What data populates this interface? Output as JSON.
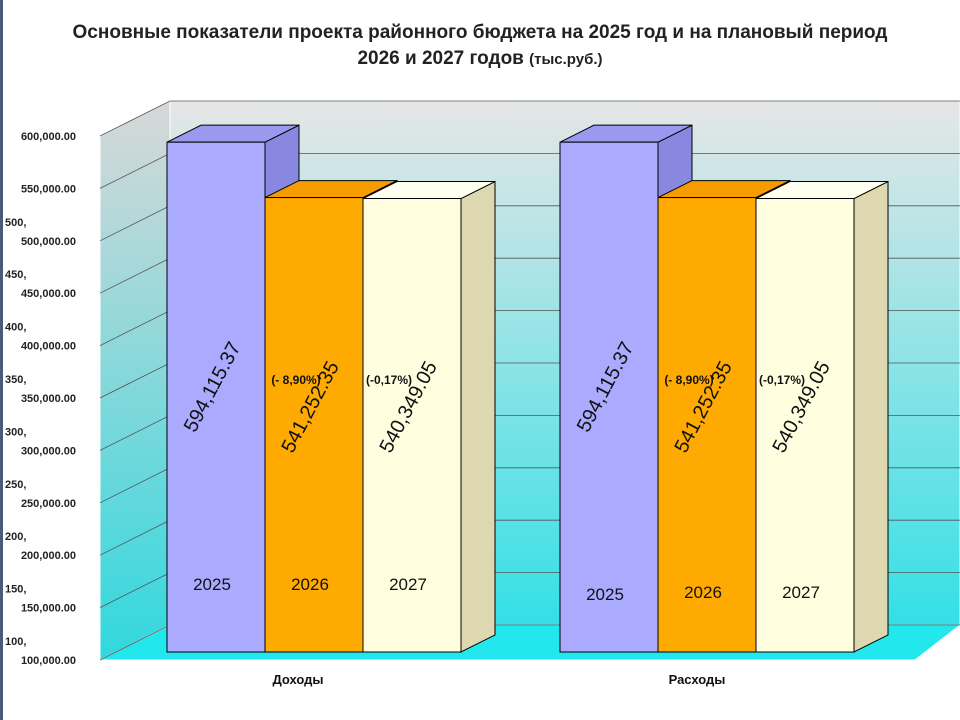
{
  "title": {
    "main": "Основные показатели проекта районного бюджета на 2025 год и на плановый период 2026 и 2027 годов",
    "unit": "(тыс.руб.)"
  },
  "colors": {
    "y2025": "#aaaaff",
    "y2026": "#ffaa00",
    "y2027": "#ffffe0",
    "wall_top": "#e6e6e6",
    "wall_bottom": "#33e0e6",
    "floor": "#22e8ee"
  },
  "chart_data": {
    "type": "bar",
    "categories": [
      "Доходы",
      "Расходы"
    ],
    "series": [
      {
        "name": "2025",
        "values": [
          594115.37,
          594115.37
        ]
      },
      {
        "name": "2026",
        "values": [
          541252.35,
          541252.35
        ]
      },
      {
        "name": "2027",
        "values": [
          540349.05,
          540349.05
        ]
      }
    ],
    "value_labels": [
      [
        "594,115.37",
        "541,252.35",
        "540,349.05"
      ],
      [
        "594,115.37",
        "541,252.35",
        "540,349.05"
      ]
    ],
    "series_labels": [
      [
        "2025",
        "2026",
        "2027"
      ],
      [
        "2025",
        "2026",
        "2027"
      ]
    ],
    "change_labels": [
      [
        "",
        "(- 8,90%)",
        "(-0,17%)"
      ],
      [
        "",
        "(- 8,90%)",
        "(-0,17%)"
      ]
    ],
    "y_ticks": [
      "100,000.00",
      "150,000.00",
      "200,000.00",
      "250,000.00",
      "300,000.00",
      "350,000.00",
      "400,000.00",
      "450,000.00",
      "500,000.00",
      "550,000.00",
      "600,000.00"
    ],
    "y_tick_values": [
      100000,
      150000,
      200000,
      250000,
      300000,
      350000,
      400000,
      450000,
      500000,
      550000,
      600000
    ],
    "ylim": [
      100000,
      600000
    ],
    "overlapping_stale_ticks": [
      "100,",
      "150,",
      "200,",
      "250,",
      "300,",
      "350,",
      "400,",
      "450,",
      "500,"
    ],
    "grid": true,
    "legend": "none",
    "three_d": true
  }
}
